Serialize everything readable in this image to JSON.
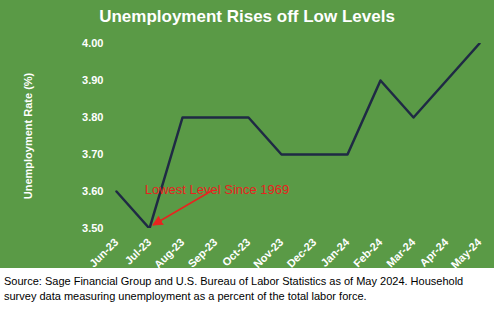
{
  "chart_data": {
    "type": "line",
    "title": "Unemployment Rises off Low Levels",
    "y_label": "Unemployment Rate (%)",
    "categories": [
      "Jun-23",
      "Jul-23",
      "Aug-23",
      "Sep-23",
      "Oct-23",
      "Nov-23",
      "Dec-23",
      "Jan-24",
      "Feb-24",
      "Mar-24",
      "Apr-24",
      "May-24"
    ],
    "values": [
      3.6,
      3.5,
      3.8,
      3.8,
      3.8,
      3.7,
      3.7,
      3.7,
      3.9,
      3.8,
      3.9,
      4.0
    ],
    "color": "#1f2a44",
    "ylim": [
      3.5,
      4.0
    ],
    "yticks": [
      {
        "value": 3.5,
        "label": "3.50"
      },
      {
        "value": 3.6,
        "label": "3.60"
      },
      {
        "value": 3.7,
        "label": "3.70"
      },
      {
        "value": 3.8,
        "label": "3.80"
      },
      {
        "value": 3.9,
        "label": "3.90"
      },
      {
        "value": 4.0,
        "label": "4.00"
      }
    ],
    "grid": false,
    "annotations": [
      {
        "text": "Lowest Level Since 1969",
        "x": "Jul-23",
        "y": 3.5
      }
    ],
    "source": "Source: Sage Financial Group and U.S. Bureau of Labor Statistics as of May 2024. Household survey data measuring unemployment as a percent of the total labor force."
  }
}
